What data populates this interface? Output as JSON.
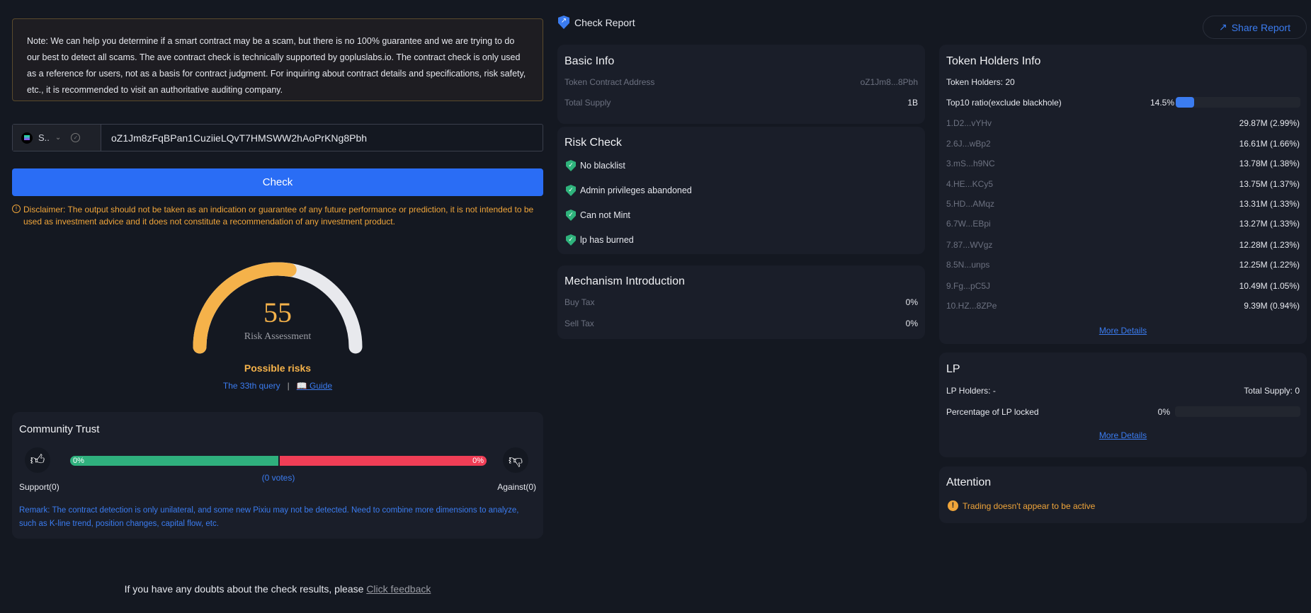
{
  "note": "Note: We can help you determine if a smart contract may be a scam, but there is no 100% guarantee and we are trying to do our best to detect all scams. The ave contract check is technically supported by gopluslabs.io. The contract check is only used as a reference for users, not as a basis for contract judgment. For inquiring about contract details and specifications, risk safety, etc., it is recommended to visit an authoritative auditing company.",
  "search": {
    "chain": "S..",
    "address": "oZ1Jm8zFqBPan1CuziieLQvT7HMSWW2hAoPrKNg8Pbh",
    "check_label": "Check"
  },
  "disclaimer": "Disclaimer: The output should not be taken as an indication or guarantee of any future performance or prediction, it is not intended to be used as investment advice and it does not constitute a recommendation of any investment product.",
  "gauge": {
    "score": "55",
    "score_value": 55,
    "label": "Risk Assessment",
    "status": "Possible risks",
    "query": "The 33th query",
    "separator": "|",
    "guide": "Guide",
    "color": "#f5b24a",
    "track": "#e8e9ed"
  },
  "community": {
    "title": "Community Trust",
    "support_pct": "0%",
    "against_pct": "0%",
    "votes": "(0 votes)",
    "support": "Support(0)",
    "against": "Against(0)",
    "remark": "Remark: The contract detection is only unilateral, and some new Pixiu may not be detected. Need to combine more dimensions to analyze, such as K-line trend, position changes, capital flow, etc.",
    "green": "#2fb07d",
    "red": "#f03e56"
  },
  "feedback": {
    "text": "If you have any doubts about the check results, please ",
    "link": "Click feedback"
  },
  "report": {
    "title": "Check Report",
    "share": "Share Report"
  },
  "basic": {
    "title": "Basic Info",
    "rows": [
      {
        "label": "Token Contract Address",
        "value": "oZ1Jm8...8Pbh"
      },
      {
        "label": "Total Supply",
        "value": "1B"
      }
    ]
  },
  "risk": {
    "title": "Risk Check",
    "items": [
      "No blacklist",
      "Admin privileges abandoned",
      "Can not Mint",
      "lp has burned"
    ]
  },
  "mechanism": {
    "title": "Mechanism Introduction",
    "rows": [
      {
        "label": "Buy Tax",
        "value": "0%"
      },
      {
        "label": "Sell Tax",
        "value": "0%"
      }
    ]
  },
  "holders": {
    "title": "Token Holders Info",
    "count": "Token Holders: 20",
    "top10_label": "Top10 ratio(exclude blackhole)",
    "top10": "14.5%",
    "top10_value": 14.5,
    "rows": [
      {
        "addr": "1.D2...vYHv",
        "amt": "29.87M (2.99%)"
      },
      {
        "addr": "2.6J...wBp2",
        "amt": "16.61M (1.66%)"
      },
      {
        "addr": "3.mS...h9NC",
        "amt": "13.78M (1.38%)"
      },
      {
        "addr": "4.HE...KCy5",
        "amt": "13.75M (1.37%)"
      },
      {
        "addr": "5.HD...AMqz",
        "amt": "13.31M (1.33%)"
      },
      {
        "addr": "6.7W...EBpi",
        "amt": "13.27M (1.33%)"
      },
      {
        "addr": "7.87...WVgz",
        "amt": "12.28M (1.23%)"
      },
      {
        "addr": "8.5N...unps",
        "amt": "12.25M (1.22%)"
      },
      {
        "addr": "9.Fg...pC5J",
        "amt": "10.49M (1.05%)"
      },
      {
        "addr": "10.HZ...8ZPe",
        "amt": "9.39M (0.94%)"
      }
    ],
    "more": "More Details"
  },
  "lp": {
    "title": "LP",
    "holders": "LP Holders: -",
    "supply": "Total Supply: 0",
    "locked_label": "Percentage of LP locked",
    "locked": "0%",
    "locked_value": 0,
    "more": "More Details"
  },
  "attention": {
    "title": "Attention",
    "item": "Trading doesn't appear to be active"
  }
}
